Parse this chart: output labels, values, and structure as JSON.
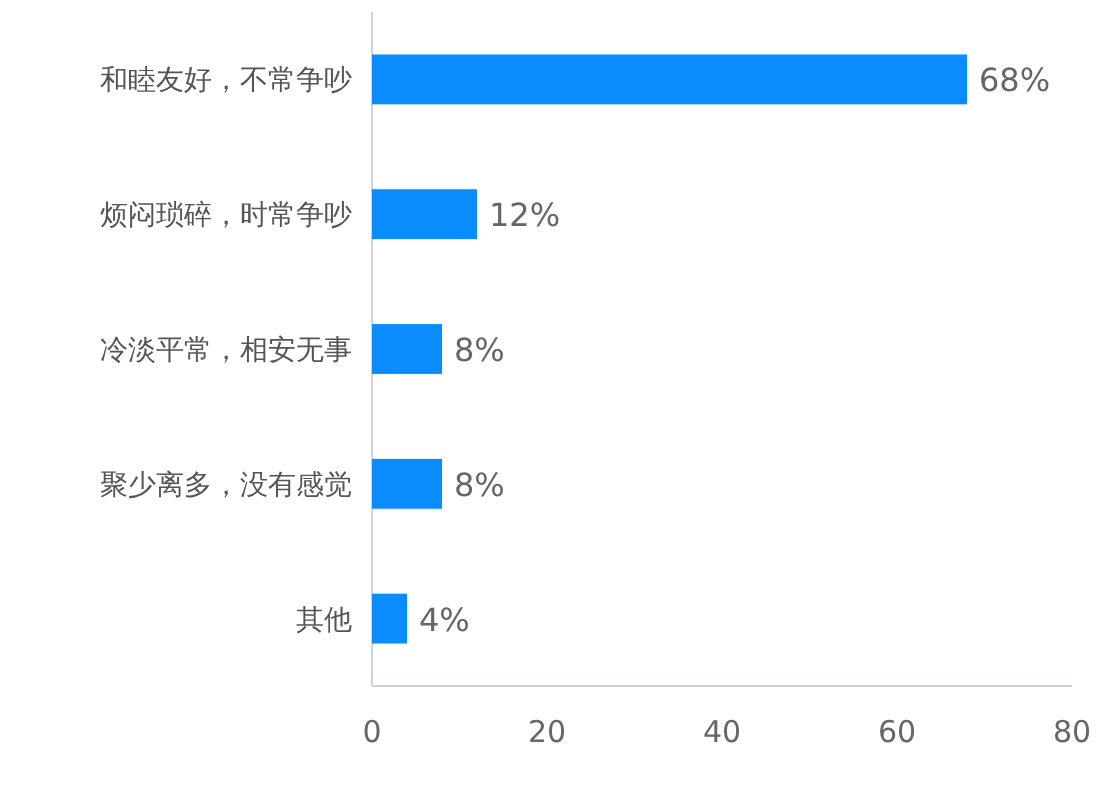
{
  "chart_data": {
    "type": "bar",
    "orientation": "horizontal",
    "categories": [
      "和睦友好，不常争吵",
      "烦闷琐碎，时常争吵",
      "冷淡平常，相安无事",
      "聚少离多，没有感觉",
      "其他"
    ],
    "values": [
      68,
      12,
      8,
      8,
      4
    ],
    "value_labels": [
      "68%",
      "12%",
      "8%",
      "8%",
      "4%"
    ],
    "color": "#0a8cff",
    "xlim": [
      0,
      80
    ],
    "xticks": [
      0,
      20,
      40,
      60,
      80
    ]
  }
}
